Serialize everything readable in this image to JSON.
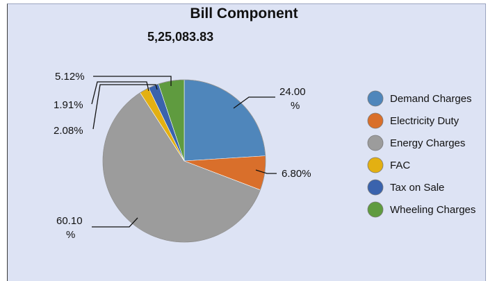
{
  "chart_data": {
    "type": "pie",
    "title": "Bill Component",
    "subtitle": "5,25,083.83",
    "legend_position": "right",
    "slices": [
      {
        "name": "Demand Charges",
        "percent": 24.0,
        "label": [
          "24.00",
          "%"
        ],
        "color": "#4f86bb"
      },
      {
        "name": "Electricity Duty",
        "percent": 6.8,
        "label": [
          "6.80%"
        ],
        "color": "#d96f2b"
      },
      {
        "name": "Energy Charges",
        "percent": 60.1,
        "label": [
          "60.10",
          "%"
        ],
        "color": "#9c9c9c"
      },
      {
        "name": "FAC",
        "percent": 1.91,
        "label": [
          "1.91%"
        ],
        "color": "#e3b012"
      },
      {
        "name": "Tax on Sale",
        "percent": 2.08,
        "label": [
          "2.08%"
        ],
        "color": "#3a63ad"
      },
      {
        "name": "Wheeling Charges",
        "percent": 5.12,
        "label": [
          "5.12%"
        ],
        "color": "#5f9b3f"
      }
    ]
  }
}
